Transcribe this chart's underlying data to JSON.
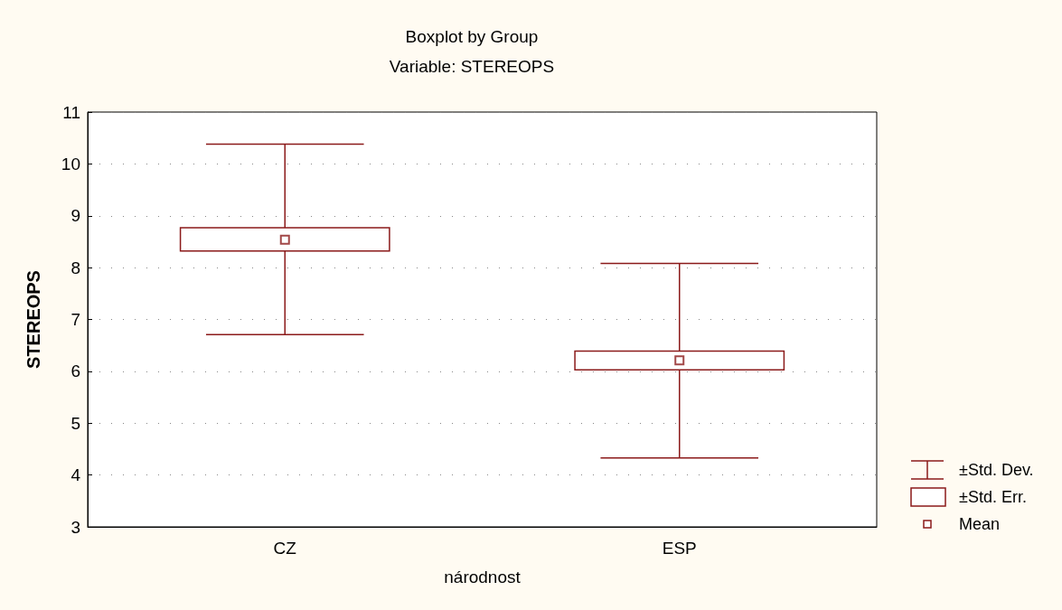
{
  "chart_data": {
    "type": "box",
    "title": "Boxplot by Group",
    "subtitle": "Variable: STEREOPS",
    "xlabel": "národnost",
    "ylabel": "STEREOPS",
    "categories": [
      "CZ",
      "ESP"
    ],
    "boxes": [
      {
        "low": 6.71,
        "q1": 8.32,
        "median": 8.54,
        "q3": 8.77,
        "high": 10.38
      },
      {
        "low": 4.33,
        "q1": 6.03,
        "median": 6.21,
        "q3": 6.39,
        "high": 8.08
      }
    ],
    "color": "#8b1a1a",
    "marker": "square",
    "ylim": [
      3,
      11
    ],
    "yticks": [
      3,
      4,
      5,
      6,
      7,
      8,
      9,
      10,
      11
    ],
    "grid": "y",
    "annotations": [
      "±Std. Dev.",
      "±Std. Err.",
      "Mean"
    ]
  }
}
